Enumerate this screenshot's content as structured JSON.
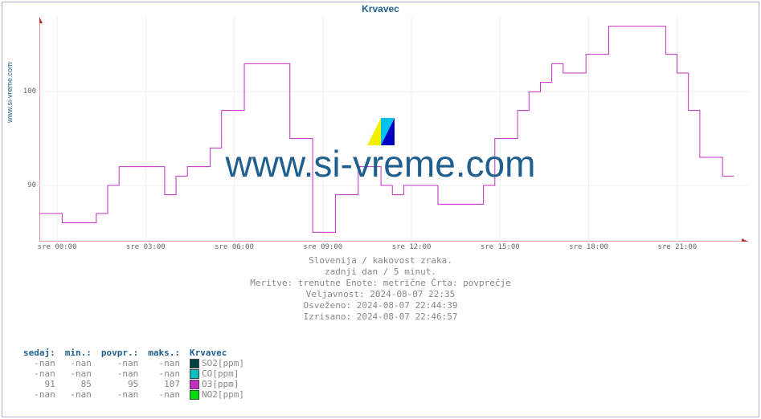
{
  "title": "Krvavec",
  "ylabel": "www.si-vreme.com",
  "watermark_text": "www.si-vreme.com",
  "chart": {
    "type": "line-step",
    "line_color": "#c030c0",
    "line_width": 1,
    "axis_color": "#c03030",
    "grid_color": "#f0f0f0",
    "background_color": "#ffffff",
    "ylim_min": 84,
    "ylim_max": 108,
    "yticks": [
      90,
      100
    ],
    "xticks": [
      "sre 00:00",
      "sre 03:00",
      "sre 06:00",
      "sre 09:00",
      "sre 12:00",
      "sre 15:00",
      "sre 18:00",
      "sre 21:00"
    ],
    "x_count": 24,
    "data_y": [
      87,
      87,
      86,
      86,
      86,
      87,
      90,
      92,
      92,
      92,
      92,
      89,
      91,
      92,
      92,
      94,
      98,
      98,
      103,
      103,
      103,
      103,
      95,
      95,
      85,
      85,
      89,
      89,
      92,
      92,
      90,
      89,
      90,
      90,
      90,
      88,
      88,
      88,
      88,
      90,
      95,
      95,
      98,
      100,
      101,
      103,
      102,
      102,
      104,
      104,
      107,
      107,
      107,
      107,
      107,
      104,
      102,
      98,
      93,
      93,
      91,
      91
    ]
  },
  "logo_colors": {
    "left": "#f0f000",
    "mid": "#00c0f0",
    "right": "#0000c0"
  },
  "info_lines": [
    "Slovenija / kakovost zraka.",
    "zadnji dan / 5 minut.",
    "Meritve: trenutne  Enote: metrične  Črta: povprečje",
    "Veljavnost: 2024-08-07 22:35",
    "Osveženo: 2024-08-07 22:44:39",
    "Izrisano: 2024-08-07 22:46:57"
  ],
  "legend": {
    "headers": {
      "now": "sedaj:",
      "min": "min.:",
      "avg": "povpr.:",
      "max": "maks.:",
      "series": "Krvavec"
    },
    "rows": [
      {
        "now": "-nan",
        "min": "-nan",
        "avg": "-nan",
        "max": "-nan",
        "color": "#004040",
        "label": "SO2[ppm]"
      },
      {
        "now": "-nan",
        "min": "-nan",
        "avg": "-nan",
        "max": "-nan",
        "color": "#00c0c0",
        "label": "CO[ppm]"
      },
      {
        "now": "91",
        "min": "85",
        "avg": "95",
        "max": "107",
        "color": "#c030c0",
        "label": "O3[ppm]"
      },
      {
        "now": "-nan",
        "min": "-nan",
        "avg": "-nan",
        "max": "-nan",
        "color": "#00e000",
        "label": "NO2[ppm]"
      }
    ]
  }
}
